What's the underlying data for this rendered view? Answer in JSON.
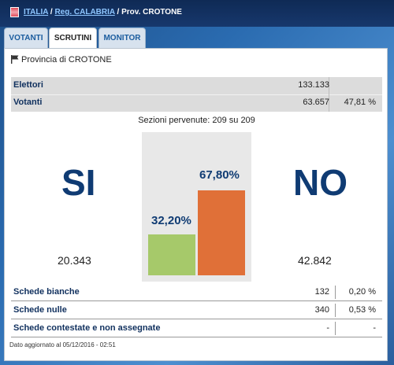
{
  "breadcrumb": {
    "country": "ITALIA",
    "region": "Reg. CALABRIA",
    "province": "Prov. CROTONE",
    "separator": "/"
  },
  "tabs": [
    {
      "label": "VOTANTI",
      "active": false
    },
    {
      "label": "SCRUTINI",
      "active": true
    },
    {
      "label": "MONITOR",
      "active": false
    }
  ],
  "panel": {
    "title": "Provincia di CROTONE"
  },
  "summary": {
    "elettori_label": "Elettori",
    "elettori_value": "133.133",
    "votanti_label": "Votanti",
    "votanti_value": "63.657",
    "votanti_pct": "47,81 %"
  },
  "sezioni": "Sezioni pervenute: 209 su 209",
  "result": {
    "yes_label": "SI",
    "no_label": "NO",
    "yes_count": "20.343",
    "no_count": "42.842",
    "yes_pct_label": "32,20%",
    "no_pct_label": "67,80%"
  },
  "chart_data": {
    "type": "bar",
    "categories": [
      "SI",
      "NO"
    ],
    "values": [
      32.2,
      67.8
    ],
    "title": "",
    "xlabel": "",
    "ylabel": "",
    "ylim": [
      0,
      100
    ],
    "grid": false,
    "colors": [
      "#a6c96a",
      "#e07038"
    ]
  },
  "details": [
    {
      "label": "Schede bianche",
      "value": "132",
      "pct": "0,20 %"
    },
    {
      "label": "Schede nulle",
      "value": "340",
      "pct": "0,53 %"
    },
    {
      "label": "Schede contestate e non assegnate",
      "value": "-",
      "pct": "-"
    }
  ],
  "footer": "Dato aggiornato al 05/12/2016 - 02:51",
  "icons": {
    "flag": "flag-icon",
    "province": "province-flag-icon"
  }
}
